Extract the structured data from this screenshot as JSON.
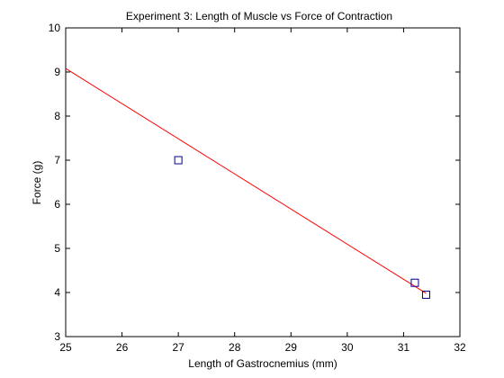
{
  "chart_data": {
    "type": "scatter",
    "title": "Experiment 3: Length of Muscle vs Force of Contraction",
    "xlabel": "Length of Gastrocnemius (mm)",
    "ylabel": "Force (g)",
    "xlim": [
      25,
      32
    ],
    "ylim": [
      3,
      10
    ],
    "xticks": [
      "25",
      "26",
      "27",
      "28",
      "29",
      "30",
      "31",
      "32"
    ],
    "yticks": [
      "3",
      "4",
      "5",
      "6",
      "7",
      "8",
      "9",
      "10"
    ],
    "grid": false,
    "legend": "none",
    "series": [
      {
        "kind": "points",
        "marker": "square",
        "color": "#00008b",
        "points": [
          {
            "x": 27.0,
            "y": 7.0
          },
          {
            "x": 31.2,
            "y": 4.22
          },
          {
            "x": 31.4,
            "y": 3.95
          }
        ]
      },
      {
        "kind": "fit-line",
        "color": "#ff0000",
        "points": [
          {
            "x": 25.0,
            "y": 9.08
          },
          {
            "x": 31.4,
            "y": 3.98
          }
        ]
      }
    ]
  }
}
